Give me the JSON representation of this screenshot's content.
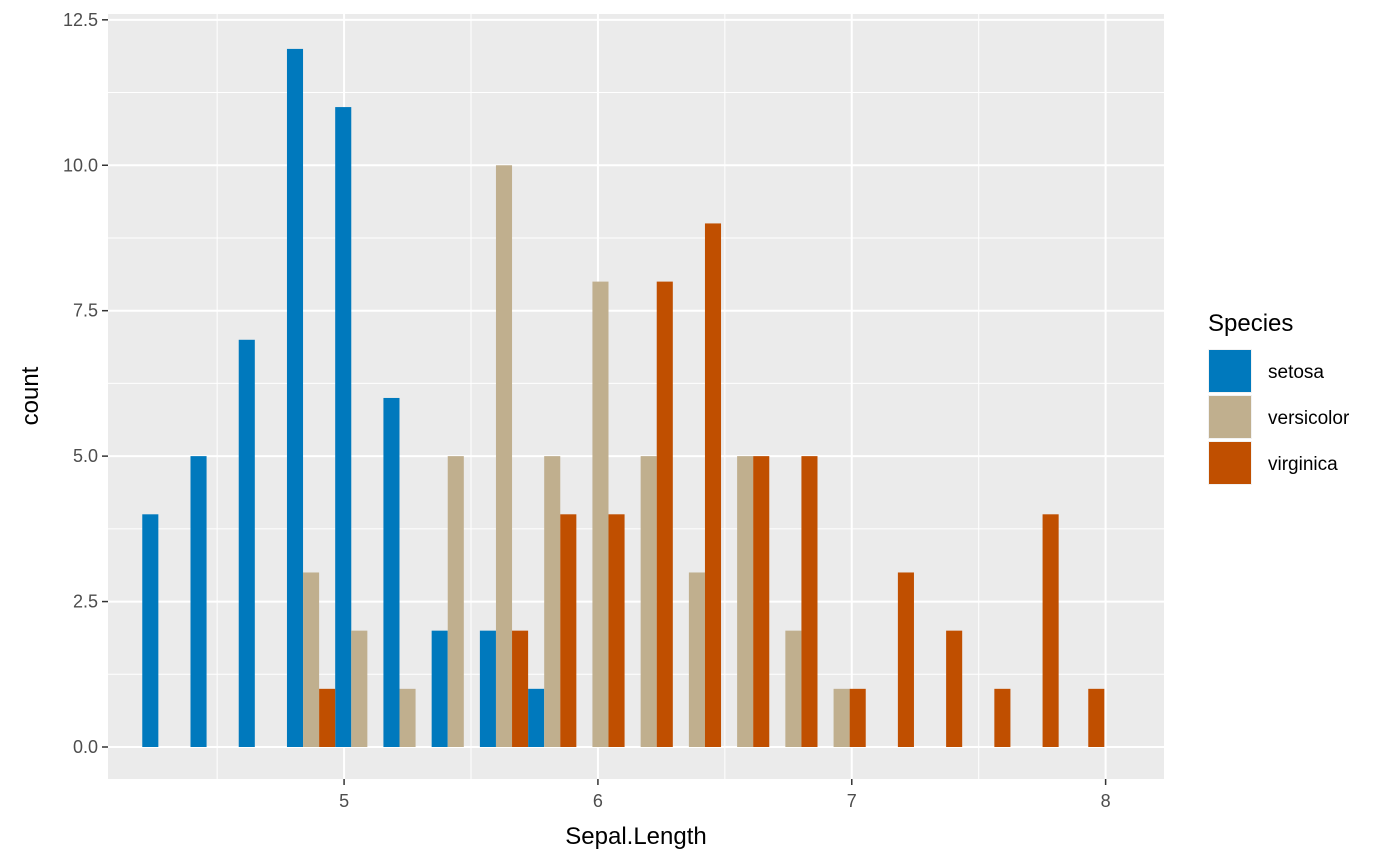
{
  "chart_data": {
    "type": "bar",
    "subtype": "histogram-dodged",
    "xlabel": "Sepal.Length",
    "ylabel": "count",
    "xlim": [
      4.07,
      8.23
    ],
    "ylim": [
      -0.55,
      12.6
    ],
    "x_ticks": [
      5,
      6,
      7,
      8
    ],
    "x_tick_labels": [
      "5",
      "6",
      "7",
      "8"
    ],
    "y_ticks": [
      0,
      2.5,
      5,
      7.5,
      10,
      12.5
    ],
    "y_tick_labels": [
      "0.0",
      "2.5",
      "5.0",
      "7.5",
      "10.0",
      "12.5"
    ],
    "x": [
      4.3,
      4.49,
      4.68,
      4.87,
      5.06,
      5.25,
      5.44,
      5.63,
      5.82,
      6.01,
      6.2,
      6.39,
      6.58,
      6.77,
      6.96,
      7.15,
      7.34,
      7.53,
      7.72,
      7.9
    ],
    "series": [
      {
        "name": "setosa",
        "color": "#0079BD",
        "values": [
          4,
          5,
          7,
          12,
          11,
          6,
          2,
          2,
          1,
          0,
          0,
          0,
          0,
          0,
          0,
          0,
          0,
          0,
          0,
          0
        ]
      },
      {
        "name": "versicolor",
        "color": "#C0AF8E",
        "values": [
          0,
          0,
          0,
          3,
          2,
          1,
          5,
          10,
          5,
          8,
          5,
          3,
          5,
          2,
          1,
          0,
          0,
          0,
          0,
          0
        ]
      },
      {
        "name": "virginica",
        "color": "#C04F00",
        "values": [
          0,
          0,
          0,
          1,
          0,
          0,
          0,
          2,
          4,
          4,
          8,
          9,
          5,
          5,
          1,
          3,
          2,
          1,
          4,
          1
        ]
      }
    ],
    "grid": true,
    "legend": {
      "title": "Species",
      "position": "right"
    }
  }
}
